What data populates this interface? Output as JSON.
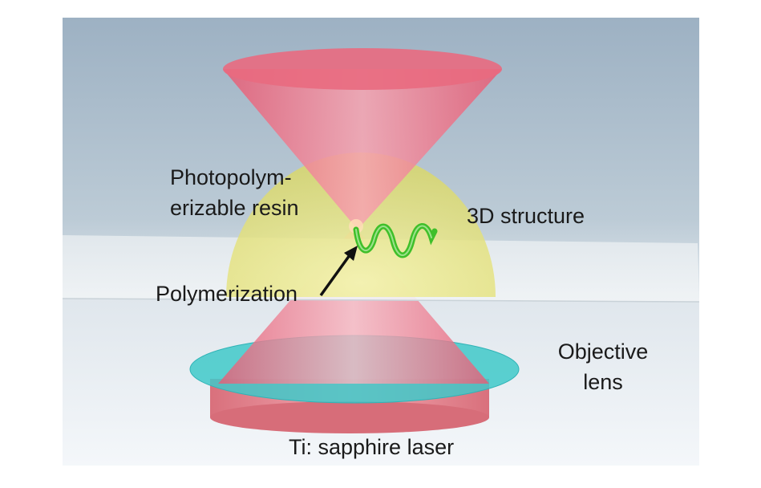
{
  "labels": {
    "resin_line1": "Photopolym-",
    "resin_line2": "erizable resin",
    "structure": "3D structure",
    "polymerization": "Polymerization",
    "objective_line1": "Objective",
    "objective_line2": "lens",
    "laser": "Ti: sapphire laser"
  },
  "colors": {
    "background_top": "#9fb3c4",
    "background_bottom": "#f3f6f9",
    "glass_slide": "#e9eef0",
    "laser_cone": "#ef6f86",
    "resin_dome": "#e6e47a",
    "lens_disc": "#3ec9c9",
    "laser_cylinder": "#e7858f",
    "helix": "#3fbf2a",
    "arrow": "#111111"
  }
}
